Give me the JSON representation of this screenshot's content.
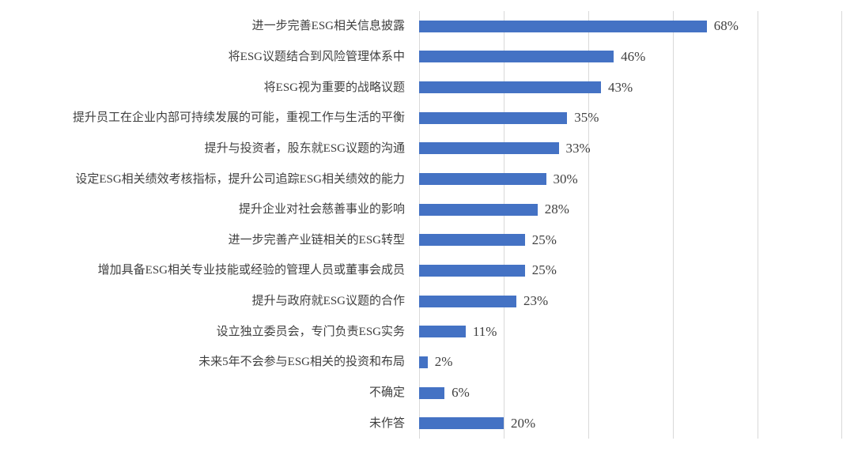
{
  "chart_data": {
    "type": "bar",
    "orientation": "horizontal",
    "title": "",
    "xlabel": "",
    "ylabel": "",
    "xlim": [
      0,
      100
    ],
    "grid": true,
    "gridlines_percent": [
      0,
      20,
      40,
      60,
      80,
      100
    ],
    "legend": "none",
    "bar_color": "#4472C4",
    "gridline_color": "#D9D9D9",
    "text_color": "#404040",
    "categories": [
      "进一步完善ESG相关信息披露",
      "将ESG议题结合到风险管理体系中",
      "将ESG视为重要的战略议题",
      "提升员工在企业内部可持续发展的可能，重视工作与生活的平衡",
      "提升与投资者，股东就ESG议题的沟通",
      "设定ESG相关绩效考核指标，提升公司追踪ESG相关绩效的能力",
      "提升企业对社会慈善事业的影响",
      "进一步完善产业链相关的ESG转型",
      "增加具备ESG相关专业技能或经验的管理人员或董事会成员",
      "提升与政府就ESG议题的合作",
      "设立独立委员会，专门负责ESG实务",
      "未来5年不会参与ESG相关的投资和布局",
      "不确定",
      "未作答"
    ],
    "values": [
      68,
      46,
      43,
      35,
      33,
      30,
      28,
      25,
      25,
      23,
      11,
      2,
      6,
      20
    ],
    "value_labels": [
      "68%",
      "46%",
      "43%",
      "35%",
      "33%",
      "30%",
      "28%",
      "25%",
      "25%",
      "23%",
      "11%",
      "2%",
      "6%",
      "20%"
    ]
  }
}
